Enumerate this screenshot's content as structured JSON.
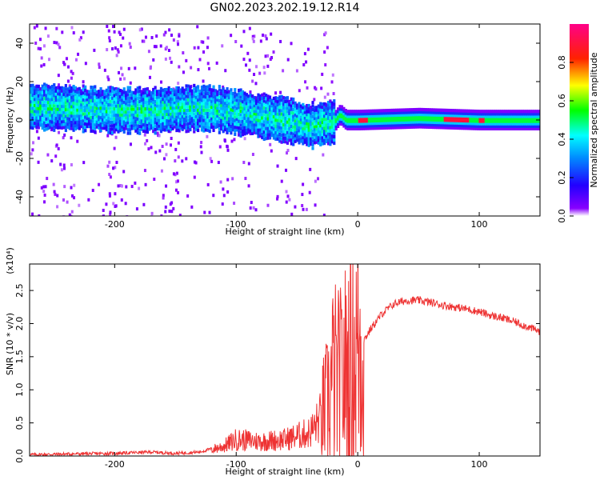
{
  "title": "GN02.2023.202.19.12.R14",
  "chart_data": [
    {
      "type": "heatmap",
      "title": "GN02.2023.202.19.12.R14",
      "xlabel": "Height of straight line (km)",
      "ylabel": "Frequency (Hz)",
      "xlim": [
        -270,
        150
      ],
      "ylim": [
        -50,
        50
      ],
      "x_ticks": [
        -200,
        -100,
        0,
        100
      ],
      "y_ticks": [
        -40,
        -20,
        0,
        20,
        40
      ],
      "colorbar": {
        "label": "Normalized spectral amplitude",
        "range": [
          0.0,
          1.0
        ],
        "ticks": [
          "0.0",
          "0.2",
          "0.4",
          "0.6",
          "0.8"
        ],
        "colormap": "rainbow (purple → blue → cyan → green → yellow → red → magenta)"
      },
      "band_centerline": [
        {
          "x": -270,
          "f": 7
        },
        {
          "x": -230,
          "f": 6
        },
        {
          "x": -200,
          "f": 5
        },
        {
          "x": -170,
          "f": 5
        },
        {
          "x": -140,
          "f": 6
        },
        {
          "x": -120,
          "f": 6
        },
        {
          "x": -100,
          "f": 4
        },
        {
          "x": -80,
          "f": 2
        },
        {
          "x": -60,
          "f": 0
        },
        {
          "x": -40,
          "f": -3
        },
        {
          "x": -30,
          "f": -2
        },
        {
          "x": -20,
          "f": -1
        },
        {
          "x": -15,
          "f": 3
        },
        {
          "x": -10,
          "f": 0
        },
        {
          "x": 0,
          "f": 0
        },
        {
          "x": 50,
          "f": 1
        },
        {
          "x": 100,
          "f": 0
        },
        {
          "x": 150,
          "f": 0
        }
      ],
      "grid": false
    },
    {
      "type": "line",
      "xlabel": "Height of straight line (km)",
      "ylabel": "SNR (10 * v/v)",
      "y_multiplier": "(x10⁴)",
      "xlim": [
        -270,
        150
      ],
      "ylim": [
        0.0,
        2.9
      ],
      "x_ticks": [
        -200,
        -100,
        0,
        100
      ],
      "y_ticks": [
        "0.0",
        "0.5",
        "1.0",
        "1.5",
        "2.0",
        "2.5"
      ],
      "line_color": "#ee3333",
      "series": [
        {
          "x": [
            -270,
            -240,
            -200,
            -170,
            -150,
            -130,
            -110,
            -100,
            -80,
            -60,
            -50,
            -40,
            -35,
            -30,
            -25,
            -20,
            -15,
            -10,
            -5,
            0,
            10,
            20,
            30,
            40,
            50,
            60,
            70,
            80,
            90,
            100,
            110,
            120,
            130,
            140,
            150
          ],
          "values": [
            0.01,
            0.02,
            0.03,
            0.05,
            0.03,
            0.05,
            0.15,
            0.25,
            0.22,
            0.25,
            0.3,
            0.35,
            0.45,
            0.6,
            0.8,
            1.2,
            1.1,
            1.3,
            1.4,
            1.6,
            1.9,
            2.15,
            2.3,
            2.35,
            2.35,
            2.32,
            2.28,
            2.25,
            2.22,
            2.18,
            2.12,
            2.08,
            2.02,
            1.95,
            1.88
          ]
        }
      ],
      "grid": false
    }
  ]
}
